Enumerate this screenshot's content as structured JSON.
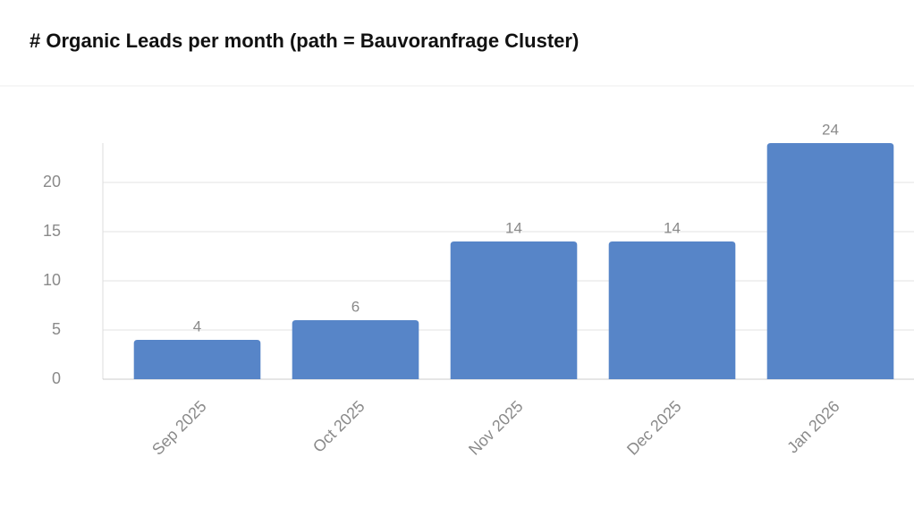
{
  "chart_data": {
    "type": "bar",
    "title": "# Organic Leads per month (path = Bauvoranfrage Cluster)",
    "categories": [
      "Sep 2025",
      "Oct 2025",
      "Nov 2025",
      "Dec 2025",
      "Jan 2026"
    ],
    "values": [
      4,
      6,
      14,
      14,
      24
    ],
    "color": "#5785c8",
    "ylim": [
      0,
      24
    ],
    "yticks": [
      0,
      5,
      10,
      15,
      20
    ],
    "grid": true
  }
}
